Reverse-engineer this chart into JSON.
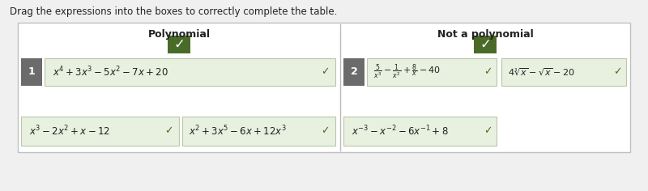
{
  "title_text": "Drag the expressions into the boxes to correctly complete the table.",
  "bg_color": "#f0f0f0",
  "panel_bg": "#ffffff",
  "cell_bg": "#e8f0df",
  "label_bg": "#6b6b6b",
  "check_bg": "#4a6b28",
  "border_color": "#b0b8a8",
  "text_color": "#222222",
  "check_color": "#4a6b28",
  "white": "#ffffff",
  "poly_label": "Polynomial",
  "not_poly_label": "Not a polynomial",
  "check": "✓",
  "num1": "1",
  "num2": "2",
  "expr1": "$x^4 + 3x^3 - 5x^2 - 7x + 20$",
  "expr2": "$\\frac{5}{x^3} - \\frac{1}{x^2} + \\frac{8}{x} - 40$",
  "expr3": "$4\\sqrt[3]{x} - \\sqrt{x} - 20$",
  "expr4": "$x^3 - 2x^2 + x - 12$",
  "expr5": "$x^2 + 3x^5 - 6x + 12x^3$",
  "expr6": "$x^{-3} - x^{-2} - 6x^{-1} + 8$"
}
